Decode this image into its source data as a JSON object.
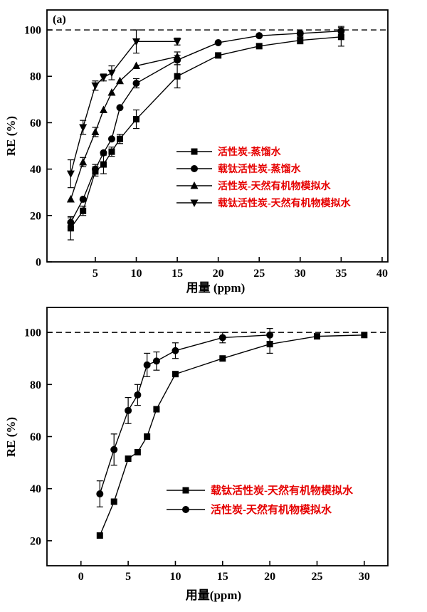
{
  "page": {
    "background": "#ffffff"
  },
  "colors": {
    "line": "#000000",
    "marker": "#000000",
    "axis": "#000000",
    "legend_text": "#e60000",
    "reference_line": "#000000"
  },
  "chart_data": [
    {
      "type": "line",
      "panel_label": "(a)",
      "title": "",
      "xlabel": "用量 (ppm)",
      "ylabel": "RE (%)",
      "x_ticks": [
        5,
        10,
        15,
        20,
        25,
        30,
        35,
        40
      ],
      "y_ticks": [
        0,
        20,
        40,
        60,
        80,
        100
      ],
      "xlim": [
        -0.9,
        40.7
      ],
      "ylim": [
        0,
        108.6
      ],
      "reference_line_y": 100,
      "grid": false,
      "legend_position": "inside-middle-right",
      "series": [
        {
          "name": "活性炭-蒸馏水",
          "marker": "square",
          "x": [
            2,
            3.5,
            5,
            6,
            7,
            8,
            10,
            15,
            20,
            25,
            30,
            35
          ],
          "y": [
            14.5,
            22,
            39,
            42,
            47.5,
            53,
            61.5,
            80,
            89,
            93,
            95.5,
            97
          ],
          "err": [
            5,
            2,
            2,
            4,
            2,
            2,
            4,
            5,
            0,
            0,
            1.5,
            4
          ]
        },
        {
          "name": "载钛活性炭-蒸馏水",
          "marker": "circle",
          "x": [
            2,
            3.5,
            5,
            6,
            7,
            8,
            10,
            15,
            20,
            25,
            30,
            35
          ],
          "y": [
            17,
            27,
            40,
            47,
            53,
            66.5,
            77,
            87,
            94.5,
            97.5,
            98.5,
            99.5
          ],
          "err": [
            2,
            0,
            2,
            0,
            0,
            0,
            2,
            2,
            0,
            0,
            1,
            2
          ]
        },
        {
          "name": "活性炭-天然有机物模拟水",
          "marker": "triangle-up",
          "x": [
            2,
            3.5,
            5,
            6,
            7,
            8,
            10,
            15
          ],
          "y": [
            27,
            43,
            56,
            65.5,
            73,
            78,
            84.5,
            88.5
          ],
          "err": [
            0,
            2,
            2,
            0,
            0,
            0,
            0,
            2
          ]
        },
        {
          "name": "载钛活性炭-天然有机物模拟水",
          "marker": "triangle-down",
          "x": [
            2,
            3.5,
            5,
            6,
            7,
            10,
            15
          ],
          "y": [
            38,
            58,
            76,
            79.5,
            81.5,
            95,
            95
          ],
          "err": [
            6,
            3,
            2,
            1.5,
            3,
            5,
            1.5
          ]
        }
      ]
    },
    {
      "type": "line",
      "panel_label": "",
      "title": "",
      "xlabel": "用量(ppm)",
      "ylabel": "RE (%)",
      "x_ticks": [
        0,
        5,
        10,
        15,
        20,
        25,
        30
      ],
      "y_ticks": [
        20,
        40,
        60,
        80,
        100
      ],
      "xlim": [
        -3.6,
        32.5
      ],
      "ylim": [
        10.4,
        109.6
      ],
      "reference_line_y": 100,
      "grid": false,
      "legend_position": "inside-middle-right",
      "series": [
        {
          "name": "载钛活性炭-天然有机物模拟水",
          "marker": "square",
          "x": [
            2,
            3.5,
            5,
            6,
            7,
            8,
            10,
            15,
            20,
            25,
            30
          ],
          "y": [
            22,
            35,
            51.5,
            54,
            60,
            70.5,
            84,
            90,
            95.5,
            98.5,
            99
          ],
          "err": [
            0,
            0,
            0,
            0,
            0,
            0,
            0,
            0,
            3.5,
            0,
            0
          ]
        },
        {
          "name": "活性炭-天然有机物模拟水",
          "marker": "circle",
          "x": [
            2,
            3.5,
            5,
            6,
            7,
            8,
            10,
            15,
            20
          ],
          "y": [
            38,
            55,
            70,
            76,
            87.5,
            89,
            93,
            98,
            99
          ],
          "err": [
            5,
            6,
            5,
            4,
            4.5,
            3.5,
            3,
            2,
            2.5
          ]
        }
      ]
    }
  ]
}
